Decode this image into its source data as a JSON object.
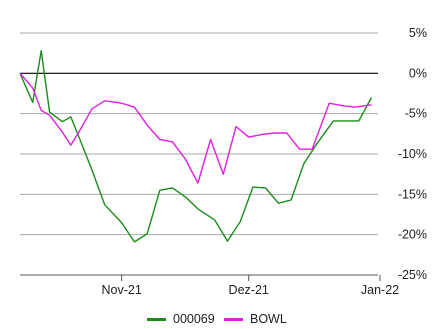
{
  "chart_data": {
    "type": "line",
    "title": "",
    "xlabel": "",
    "ylabel": "",
    "ylim": [
      -25,
      5
    ],
    "y_ticks": [
      5,
      0,
      -5,
      -10,
      -15,
      -20,
      -25
    ],
    "y_tick_labels": [
      "5%",
      "0%",
      "-5%",
      "-10%",
      "-15%",
      "-20%",
      "-25%"
    ],
    "y_axis_side": "right",
    "x_tick_labels": [
      "Nov-21",
      "Dez-21",
      "Jan-22"
    ],
    "grid": true,
    "legend_position": "bottom",
    "series": [
      {
        "name": "000069",
        "color": "#1a8c1a",
        "points": [
          [
            "2021-10-08",
            0.0
          ],
          [
            "2021-10-11",
            -3.6
          ],
          [
            "2021-10-13",
            2.8
          ],
          [
            "2021-10-15",
            -4.8
          ],
          [
            "2021-10-18",
            -6.0
          ],
          [
            "2021-10-20",
            -5.4
          ],
          [
            "2021-10-22",
            -8.0
          ],
          [
            "2021-10-25",
            -12.0
          ],
          [
            "2021-10-28",
            -16.3
          ],
          [
            "2021-11-01",
            -18.5
          ],
          [
            "2021-11-04",
            -20.9
          ],
          [
            "2021-11-07",
            -19.9
          ],
          [
            "2021-11-10",
            -14.5
          ],
          [
            "2021-11-13",
            -14.2
          ],
          [
            "2021-11-16",
            -15.3
          ],
          [
            "2021-11-19",
            -16.8
          ],
          [
            "2021-11-23",
            -18.2
          ],
          [
            "2021-11-26",
            -20.8
          ],
          [
            "2021-11-29",
            -18.4
          ],
          [
            "2021-12-02",
            -14.1
          ],
          [
            "2021-12-05",
            -14.2
          ],
          [
            "2021-12-08",
            -16.1
          ],
          [
            "2021-12-11",
            -15.7
          ],
          [
            "2021-12-14",
            -11.2
          ],
          [
            "2021-12-17",
            -8.8
          ],
          [
            "2021-12-21",
            -5.9
          ],
          [
            "2021-12-24",
            -5.9
          ],
          [
            "2021-12-27",
            -5.9
          ],
          [
            "2021-12-30",
            -3.0
          ]
        ]
      },
      {
        "name": "BOWL",
        "color": "#e020e0",
        "points": [
          [
            "2021-10-08",
            0.0
          ],
          [
            "2021-10-11",
            -1.8
          ],
          [
            "2021-10-13",
            -4.6
          ],
          [
            "2021-10-15",
            -5.2
          ],
          [
            "2021-10-18",
            -7.3
          ],
          [
            "2021-10-20",
            -8.9
          ],
          [
            "2021-10-22",
            -7.2
          ],
          [
            "2021-10-25",
            -4.4
          ],
          [
            "2021-10-28",
            -3.4
          ],
          [
            "2021-11-01",
            -3.7
          ],
          [
            "2021-11-04",
            -4.2
          ],
          [
            "2021-11-07",
            -6.4
          ],
          [
            "2021-11-10",
            -8.2
          ],
          [
            "2021-11-13",
            -8.5
          ],
          [
            "2021-11-16",
            -10.6
          ],
          [
            "2021-11-19",
            -13.6
          ],
          [
            "2021-11-22",
            -8.2
          ],
          [
            "2021-11-25",
            -12.5
          ],
          [
            "2021-11-28",
            -6.6
          ],
          [
            "2021-12-01",
            -7.9
          ],
          [
            "2021-12-04",
            -7.6
          ],
          [
            "2021-12-07",
            -7.4
          ],
          [
            "2021-12-10",
            -7.4
          ],
          [
            "2021-12-13",
            -9.4
          ],
          [
            "2021-12-16",
            -9.4
          ],
          [
            "2021-12-20",
            -3.7
          ],
          [
            "2021-12-23",
            -4.0
          ],
          [
            "2021-12-26",
            -4.2
          ],
          [
            "2021-12-30",
            -3.9
          ]
        ]
      }
    ]
  }
}
